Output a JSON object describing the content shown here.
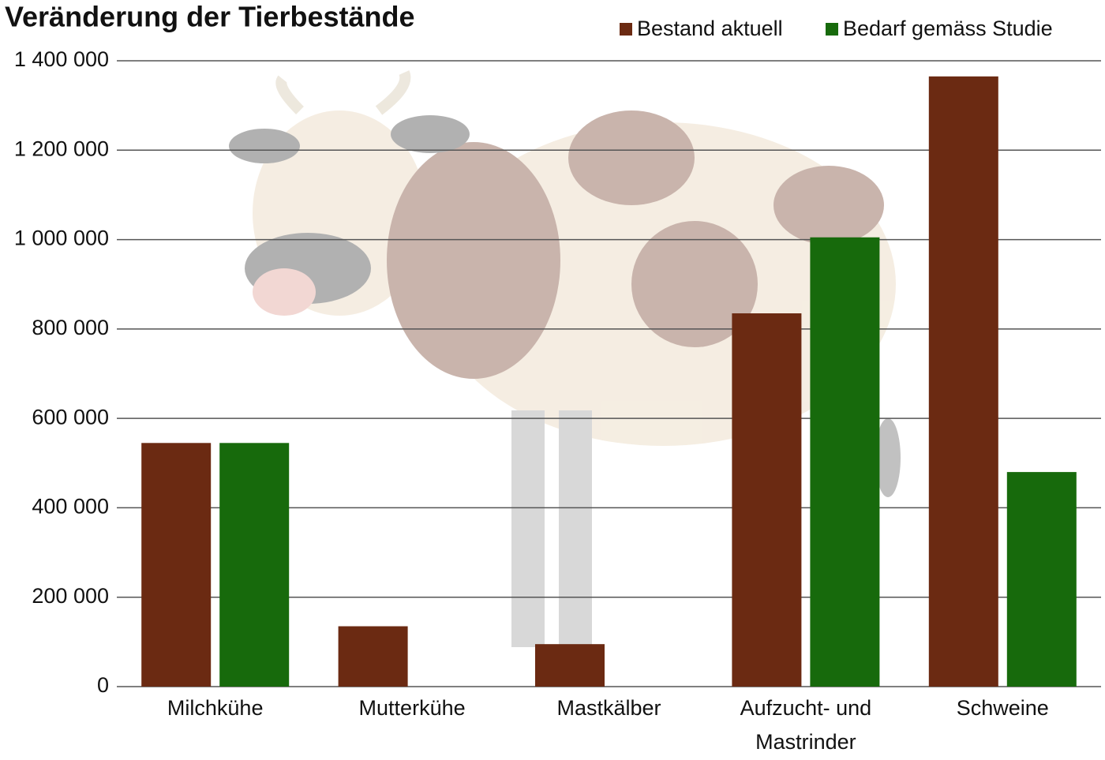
{
  "chart_data": {
    "type": "bar",
    "title": "Veränderung der Tierbestände",
    "categories": [
      "Milchkühe",
      "Mutterkühe",
      "Mastkälber",
      "Aufzucht- und Mastrinder",
      "Schweine"
    ],
    "series": [
      {
        "name": "Bestand aktuell",
        "color": "#6b2a12",
        "values": [
          545000,
          135000,
          95000,
          835000,
          1365000
        ]
      },
      {
        "name": "Bedarf gemäss Studie",
        "color": "#176a0c",
        "values": [
          545000,
          null,
          null,
          1005000,
          480000
        ]
      }
    ],
    "ylim": [
      0,
      1400000
    ],
    "yticks": [
      0,
      {
        "value": 200000,
        "label": "200 000"
      },
      {
        "value": 400000,
        "label": "400 000"
      },
      {
        "value": 600000,
        "label": "600 000"
      },
      {
        "value": 800000,
        "label": "800 000"
      },
      {
        "value": 1000000,
        "label": "1 000 000"
      },
      {
        "value": 1200000,
        "label": "1 200 000"
      },
      {
        "value": 1400000,
        "label": "1 400 000"
      }
    ],
    "grid": true,
    "legend": "top-right"
  }
}
